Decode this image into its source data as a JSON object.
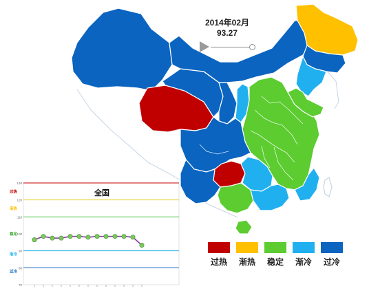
{
  "title": "全国",
  "period": "2014年02月",
  "index_value": "93.27",
  "status_colors": {
    "过热": "#c00000",
    "渐热": "#ffc000",
    "稳定": "#5ccc30",
    "渐冷": "#20b0f0",
    "过冷": "#0a64c0"
  },
  "legend": [
    {
      "label": "过热",
      "color": "#c00000"
    },
    {
      "label": "渐热",
      "color": "#ffc000"
    },
    {
      "label": "稳定",
      "color": "#5ccc30"
    },
    {
      "label": "渐冷",
      "color": "#20b0f0"
    },
    {
      "label": "过冷",
      "color": "#0a64c0"
    }
  ],
  "chart_data": {
    "type": "line",
    "title": "全国",
    "yticks": [
      "130",
      "120",
      "110",
      "100",
      "90",
      "80",
      "70"
    ],
    "ylim": [
      70,
      130
    ],
    "band_labels": [
      {
        "label": "过热",
        "value": 125,
        "color": "#c00000"
      },
      {
        "label": "渐热",
        "value": 115,
        "color": "#ffc000"
      },
      {
        "label": "稳定",
        "value": 100,
        "color": "#3aaa30"
      },
      {
        "label": "渐冷",
        "value": 88,
        "color": "#20b0f0"
      },
      {
        "label": "过冷",
        "value": 78,
        "color": "#0a64c0"
      }
    ],
    "thresholds": [
      {
        "value": 130,
        "color": "#c00000"
      },
      {
        "value": 120,
        "color": "#e8d030"
      },
      {
        "value": 110,
        "color": "#40c040"
      },
      {
        "value": 90,
        "color": "#20b0f0"
      },
      {
        "value": 80,
        "color": "#0a64c0"
      }
    ],
    "values": [
      96.5,
      98.5,
      97.5,
      97.5,
      98.5,
      98.5,
      98.0,
      98.5,
      98.5,
      98.5,
      98.5,
      98.0,
      93.3
    ]
  }
}
